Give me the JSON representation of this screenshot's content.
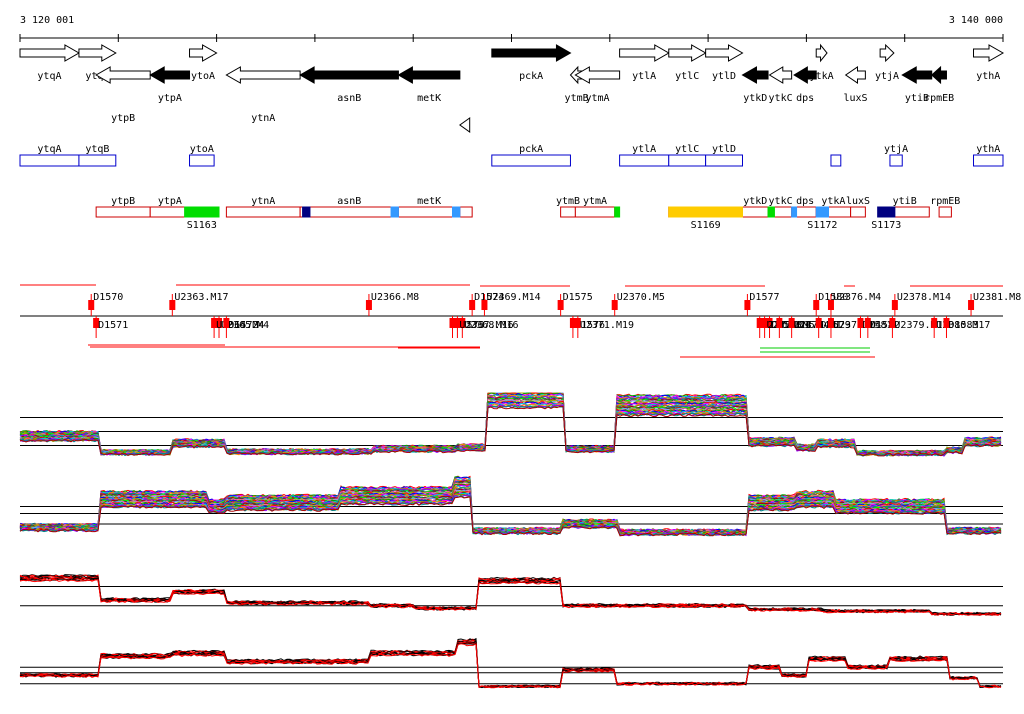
{
  "ruler": {
    "start_label": "3 120 001",
    "end_label": "3 140 000",
    "start": 3120001,
    "end": 3140000
  },
  "genes": [
    {
      "label": "ytqA",
      "strand": "+",
      "fill": "open",
      "a": 3120001,
      "b": 3121200,
      "row": 0
    },
    {
      "label": "ytqB",
      "strand": "+",
      "fill": "open",
      "a": 3121200,
      "b": 3121950,
      "row": 0
    },
    {
      "label": "ytpB",
      "strand": "-",
      "fill": "open",
      "a": 3121550,
      "b": 3122650,
      "row": 1
    },
    {
      "label": "ytpA",
      "strand": "-",
      "fill": "solid",
      "a": 3122650,
      "b": 3123450,
      "row": 1
    },
    {
      "label": "ytoA",
      "strand": "+",
      "fill": "open",
      "a": 3123450,
      "b": 3124000,
      "row": 0
    },
    {
      "label": "ytnA",
      "strand": "-",
      "fill": "open",
      "a": 3124200,
      "b": 3125700,
      "row": 1
    },
    {
      "label": "asnB",
      "strand": "-",
      "fill": "solid",
      "a": 3125700,
      "b": 3127700,
      "row": 1
    },
    {
      "label": "metK",
      "strand": "-",
      "fill": "solid",
      "a": 3127700,
      "b": 3128950,
      "row": 1
    },
    {
      "label": "pckA",
      "strand": "+",
      "fill": "solid",
      "a": 3129600,
      "b": 3131200,
      "row": 0
    },
    {
      "label": "ytmB",
      "strand": "-",
      "fill": "open",
      "a": 3131200,
      "b": 3131450,
      "row": 1
    },
    {
      "label": "ytmA",
      "strand": "-",
      "fill": "open",
      "a": 3131300,
      "b": 3132200,
      "row": 1
    },
    {
      "label": "ytlA",
      "strand": "+",
      "fill": "open",
      "a": 3132200,
      "b": 3133200,
      "row": 0
    },
    {
      "label": "ytlC",
      "strand": "+",
      "fill": "open",
      "a": 3133200,
      "b": 3133950,
      "row": 0
    },
    {
      "label": "ytlD",
      "strand": "+",
      "fill": "open",
      "a": 3133950,
      "b": 3134700,
      "row": 0
    },
    {
      "label": "ytkD",
      "strand": "-",
      "fill": "solid",
      "a": 3134700,
      "b": 3135220,
      "row": 1
    },
    {
      "label": "ytkC",
      "strand": "-",
      "fill": "open",
      "a": 3135250,
      "b": 3135700,
      "row": 1
    },
    {
      "label": "dps",
      "strand": "-",
      "fill": "solid",
      "a": 3135750,
      "b": 3136200,
      "row": 1
    },
    {
      "label": "ytkA",
      "strand": "+",
      "fill": "open",
      "a": 3136200,
      "b": 3136420,
      "row": 0
    },
    {
      "label": "luxS",
      "strand": "-",
      "fill": "open",
      "a": 3136800,
      "b": 3137200,
      "row": 1
    },
    {
      "label": "ytjA",
      "strand": "+",
      "fill": "open",
      "a": 3137500,
      "b": 3137780,
      "row": 0
    },
    {
      "label": "ytiB",
      "strand": "-",
      "fill": "solid",
      "a": 3137950,
      "b": 3138550,
      "row": 1
    },
    {
      "label": "rpmEB",
      "strand": "-",
      "fill": "solid",
      "a": 3138550,
      "b": 3138850,
      "row": 1
    },
    {
      "label": "ythA",
      "strand": "+",
      "fill": "open",
      "a": 3139400,
      "b": 3140000,
      "row": 0
    }
  ],
  "extra_arrow": {
    "a": 3128950,
    "b": 3129150,
    "strand": "-"
  },
  "operons": [
    {
      "label": "ytqA",
      "a": 3120001,
      "b": 3121200
    },
    {
      "label": "ytqB",
      "a": 3121200,
      "b": 3121950
    },
    {
      "label": "ytoA",
      "a": 3123450,
      "b": 3123950
    },
    {
      "label": "pckA",
      "a": 3129600,
      "b": 3131200
    },
    {
      "label": "ytlA",
      "a": 3132200,
      "b": 3133200
    },
    {
      "label": "ytlC",
      "a": 3133200,
      "b": 3133950
    },
    {
      "label": "ytlD",
      "a": 3133950,
      "b": 3134700
    },
    {
      "label": "",
      "a": 3136500,
      "b": 3136700
    },
    {
      "label": "ytjA",
      "a": 3137700,
      "b": 3137950
    },
    {
      "label": "ythA",
      "a": 3139400,
      "b": 3140000
    }
  ],
  "transcripts": [
    {
      "label": "ytpB",
      "a": 3121550,
      "b": 3122650
    },
    {
      "label": "ytpA",
      "a": 3122650,
      "b": 3123450
    },
    {
      "label": "ytnA",
      "a": 3124200,
      "b": 3125700
    },
    {
      "label": "asnB",
      "a": 3125700,
      "b": 3127700
    },
    {
      "label": "metK",
      "a": 3127700,
      "b": 3128950
    },
    {
      "label": "",
      "a": 3128950,
      "b": 3129200
    },
    {
      "label": "ytmB",
      "a": 3131000,
      "b": 3131300
    },
    {
      "label": "ytmA",
      "a": 3131300,
      "b": 3132100
    },
    {
      "label": "",
      "a": 3133200,
      "b": 3134700
    },
    {
      "label": "ytkD",
      "a": 3134700,
      "b": 3135220
    },
    {
      "label": "ytkC",
      "a": 3135250,
      "b": 3135700
    },
    {
      "label": "dps",
      "a": 3135750,
      "b": 3136200
    },
    {
      "label": "ytkA",
      "a": 3136200,
      "b": 3136900
    },
    {
      "label": "luxS",
      "a": 3136900,
      "b": 3137200
    },
    {
      "label": "ytiB",
      "a": 3137500,
      "b": 3138500
    },
    {
      "label": "rpmEB",
      "a": 3138700,
      "b": 3138950
    }
  ],
  "segments": [
    {
      "a": 3123350,
      "b": 3124050,
      "color": "#00dd00",
      "label": "S1163"
    },
    {
      "a": 3125750,
      "b": 3125900,
      "color": "#000080",
      "label": ""
    },
    {
      "a": 3127550,
      "b": 3127700,
      "color": "#3399ff",
      "label": ""
    },
    {
      "a": 3128800,
      "b": 3128950,
      "color": "#3399ff",
      "label": ""
    },
    {
      "a": 3132100,
      "b": 3132200,
      "color": "#00dd00",
      "label": ""
    },
    {
      "a": 3133200,
      "b": 3134700,
      "color": "#ffcc00",
      "label": "S1169"
    },
    {
      "a": 3135220,
      "b": 3135350,
      "color": "#00dd00",
      "label": ""
    },
    {
      "a": 3135700,
      "b": 3135800,
      "color": "#3399ff",
      "label": ""
    },
    {
      "a": 3136200,
      "b": 3136450,
      "color": "#3399ff",
      "label": "S1172"
    },
    {
      "a": 3137450,
      "b": 3137800,
      "color": "#000080",
      "label": "S1173"
    }
  ],
  "tss": [
    {
      "label": "D1570",
      "pos": 3121450,
      "dir": "up"
    },
    {
      "label": "D1571",
      "pos": 3121550,
      "dir": "down"
    },
    {
      "label": "U2363.M17",
      "pos": 3123100,
      "dir": "up"
    },
    {
      "label": "U2365.M4",
      "pos": 3124050,
      "dir": "down"
    },
    {
      "label": "U2364.M4",
      "pos": 3123950,
      "dir": "down"
    },
    {
      "label": "D1572",
      "pos": 3124200,
      "dir": "down"
    },
    {
      "label": "U2366.M8",
      "pos": 3127100,
      "dir": "up"
    },
    {
      "label": "D1573",
      "pos": 3128800,
      "dir": "down"
    },
    {
      "label": "U2368.M16",
      "pos": 3129000,
      "dir": "down"
    },
    {
      "label": "U2367.M16",
      "pos": 3128900,
      "dir": "down"
    },
    {
      "label": "D1574",
      "pos": 3129200,
      "dir": "up"
    },
    {
      "label": "U2369.M14",
      "pos": 3129450,
      "dir": "up"
    },
    {
      "label": "D1575",
      "pos": 3131000,
      "dir": "up"
    },
    {
      "label": "D1576",
      "pos": 3131250,
      "dir": "down"
    },
    {
      "label": "U2371.M19",
      "pos": 3131350,
      "dir": "down"
    },
    {
      "label": "U2370.M5",
      "pos": 3132100,
      "dir": "up"
    },
    {
      "label": "D1577",
      "pos": 3134800,
      "dir": "up"
    },
    {
      "label": "D1578",
      "pos": 3135250,
      "dir": "down"
    },
    {
      "label": "U2372.M1",
      "pos": 3135050,
      "dir": "down"
    },
    {
      "label": "U2373.M5",
      "pos": 3135150,
      "dir": "down"
    },
    {
      "label": "U2374.M4",
      "pos": 3135450,
      "dir": "down"
    },
    {
      "label": "U2375.M1",
      "pos": 3135700,
      "dir": "down"
    },
    {
      "label": "D1580",
      "pos": 3136200,
      "dir": "up"
    },
    {
      "label": "D1579",
      "pos": 3136250,
      "dir": "down"
    },
    {
      "label": "U2377.M4",
      "pos": 3136500,
      "dir": "down"
    },
    {
      "label": "U2376.M4",
      "pos": 3136500,
      "dir": "up"
    },
    {
      "label": "D1581",
      "pos": 3137100,
      "dir": "down"
    },
    {
      "label": "D1582",
      "pos": 3137250,
      "dir": "down"
    },
    {
      "label": "U2378.M14",
      "pos": 3137800,
      "dir": "up"
    },
    {
      "label": "U2379.M1",
      "pos": 3137750,
      "dir": "down"
    },
    {
      "label": "U2380.M17",
      "pos": 3138600,
      "dir": "down"
    },
    {
      "label": "D1583",
      "pos": 3138850,
      "dir": "down"
    },
    {
      "label": "U2381.M8",
      "pos": 3139350,
      "dir": "up"
    }
  ],
  "expression_panels": [
    {
      "lines": 40,
      "baseline": 0.78,
      "thresholds": [
        0.35,
        0.55,
        0.75
      ],
      "profile": [
        [
          3120001,
          0.62
        ],
        [
          3121600,
          0.85
        ],
        [
          3123100,
          0.72
        ],
        [
          3124200,
          0.84
        ],
        [
          3127200,
          0.8
        ],
        [
          3128900,
          0.78
        ],
        [
          3129500,
          0.05
        ],
        [
          3131100,
          0.8
        ],
        [
          3132100,
          0.18
        ],
        [
          3134800,
          0.7
        ],
        [
          3135800,
          0.78
        ],
        [
          3136200,
          0.72
        ],
        [
          3137000,
          0.86
        ],
        [
          3138800,
          0.82
        ],
        [
          3139200,
          0.7
        ],
        [
          3140000,
          0.7
        ]
      ]
    },
    {
      "lines": 40,
      "baseline": 0.5,
      "thresholds": [
        0.45,
        0.55,
        0.7
      ],
      "profile": [
        [
          3120001,
          0.75
        ],
        [
          3121600,
          0.35
        ],
        [
          3123800,
          0.45
        ],
        [
          3124200,
          0.4
        ],
        [
          3126500,
          0.3
        ],
        [
          3128800,
          0.18
        ],
        [
          3129200,
          0.8
        ],
        [
          3131000,
          0.7
        ],
        [
          3132200,
          0.82
        ],
        [
          3134800,
          0.4
        ],
        [
          3135800,
          0.35
        ],
        [
          3136600,
          0.45
        ],
        [
          3137600,
          0.45
        ],
        [
          3138800,
          0.8
        ],
        [
          3140000,
          0.82
        ]
      ]
    },
    {
      "lines": 10,
      "baseline": 0.5,
      "thresholds": [
        0.3,
        0.65
      ],
      "profile": [
        [
          3120001,
          0.15
        ],
        [
          3121600,
          0.55
        ],
        [
          3123100,
          0.4
        ],
        [
          3124200,
          0.6
        ],
        [
          3127100,
          0.65
        ],
        [
          3128000,
          0.7
        ],
        [
          3129300,
          0.2
        ],
        [
          3131000,
          0.65
        ],
        [
          3134800,
          0.72
        ],
        [
          3136300,
          0.75
        ],
        [
          3138500,
          0.8
        ],
        [
          3140000,
          0.85
        ]
      ]
    },
    {
      "lines": 10,
      "baseline": 0.5,
      "thresholds": [
        0.55,
        0.65,
        0.85
      ],
      "profile": [
        [
          3120001,
          0.7
        ],
        [
          3121600,
          0.35
        ],
        [
          3123100,
          0.3
        ],
        [
          3124200,
          0.45
        ],
        [
          3127100,
          0.3
        ],
        [
          3128900,
          0.1
        ],
        [
          3129300,
          0.9
        ],
        [
          3131000,
          0.6
        ],
        [
          3132100,
          0.85
        ],
        [
          3134800,
          0.55
        ],
        [
          3135500,
          0.7
        ],
        [
          3136000,
          0.4
        ],
        [
          3136800,
          0.55
        ],
        [
          3137700,
          0.4
        ],
        [
          3138900,
          0.75
        ],
        [
          3139500,
          0.9
        ],
        [
          3140000,
          0.88
        ]
      ]
    }
  ],
  "colors": {
    "operon_border": "#0000cc",
    "transcript_border": "#cc0000",
    "tss_mark": "#ff0000",
    "line": "#000000",
    "red_trace": "#ff0000"
  }
}
